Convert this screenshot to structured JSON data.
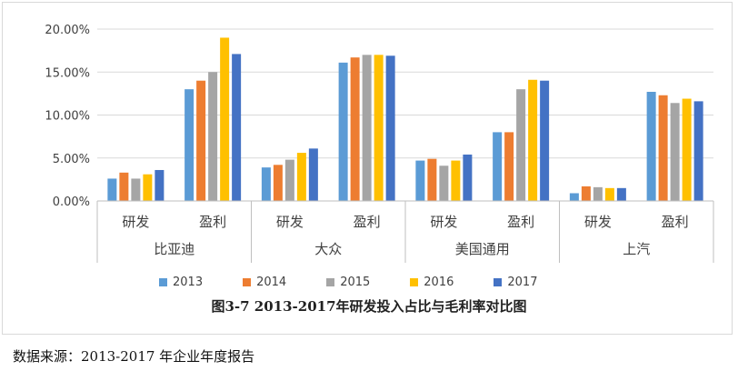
{
  "chart_data": {
    "type": "bar",
    "title": "图3-7 2013-2017年研发投入占比与毛利率对比图",
    "xlabel": "",
    "ylabel": "",
    "ylim": [
      0,
      20
    ],
    "y_ticks": [
      "0.00%",
      "5.00%",
      "10.00%",
      "15.00%",
      "20.00%"
    ],
    "y_tick_values": [
      0,
      5,
      10,
      15,
      20
    ],
    "groups": [
      {
        "name": "比亚迪",
        "categories": [
          "研发",
          "盈利"
        ]
      },
      {
        "name": "大众",
        "categories": [
          "研发",
          "盈利"
        ]
      },
      {
        "name": "美国通用",
        "categories": [
          "研发",
          "盈利"
        ]
      },
      {
        "name": "上汽",
        "categories": [
          "研发",
          "盈利"
        ]
      }
    ],
    "series": [
      {
        "name": "2013",
        "color": "#5B9BD5",
        "values": [
          2.6,
          13.0,
          3.9,
          16.1,
          4.7,
          8.0,
          0.9,
          12.7
        ]
      },
      {
        "name": "2014",
        "color": "#ED7D31",
        "values": [
          3.3,
          14.0,
          4.2,
          16.7,
          4.9,
          8.0,
          1.7,
          12.3
        ]
      },
      {
        "name": "2015",
        "color": "#A5A5A5",
        "values": [
          2.6,
          15.0,
          4.8,
          17.0,
          4.1,
          13.0,
          1.6,
          11.4
        ]
      },
      {
        "name": "2016",
        "color": "#FFC000",
        "values": [
          3.1,
          19.0,
          5.6,
          17.0,
          4.7,
          14.1,
          1.5,
          11.9
        ]
      },
      {
        "name": "2017",
        "color": "#4472C4",
        "values": [
          3.6,
          17.1,
          6.1,
          16.9,
          5.4,
          14.0,
          1.5,
          11.6
        ]
      }
    ]
  },
  "source_note": "数据来源：2013-2017 年企业年度报告"
}
